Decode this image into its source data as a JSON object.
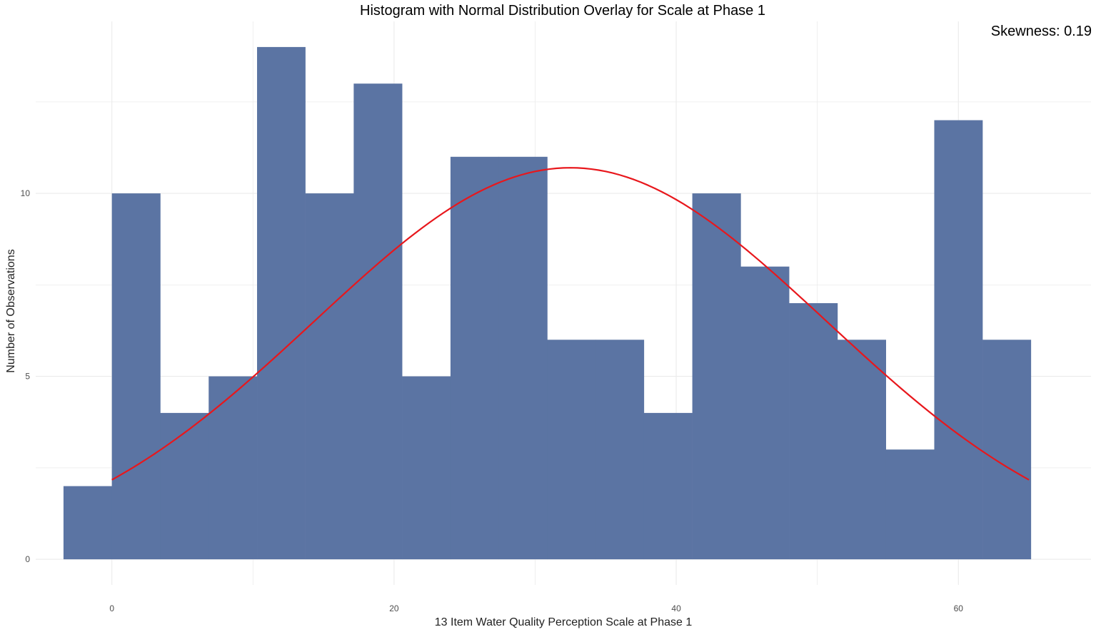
{
  "chart_data": {
    "type": "bar",
    "title": "Histogram with Normal Distribution Overlay for Scale at Phase 1",
    "xlabel": "13 Item Water Quality Perception Scale at Phase 1",
    "ylabel": "Number of Observations",
    "annotation": "Skewness: 0.19",
    "xlim": [
      -5.4,
      69.4
    ],
    "ylim": [
      -0.7,
      14.7
    ],
    "x_ticks": [
      0,
      20,
      40,
      60
    ],
    "y_ticks": [
      0,
      5,
      10
    ],
    "grid": true,
    "bins": [
      {
        "x0": -3.43,
        "x1": 0.0,
        "count": 2
      },
      {
        "x0": 0.0,
        "x1": 3.43,
        "count": 10
      },
      {
        "x0": 3.43,
        "x1": 6.86,
        "count": 4
      },
      {
        "x0": 6.86,
        "x1": 10.29,
        "count": 5
      },
      {
        "x0": 10.29,
        "x1": 13.71,
        "count": 14
      },
      {
        "x0": 13.71,
        "x1": 17.14,
        "count": 10
      },
      {
        "x0": 17.14,
        "x1": 20.57,
        "count": 13
      },
      {
        "x0": 20.57,
        "x1": 24.0,
        "count": 5
      },
      {
        "x0": 24.0,
        "x1": 27.43,
        "count": 11
      },
      {
        "x0": 27.43,
        "x1": 30.86,
        "count": 11
      },
      {
        "x0": 30.86,
        "x1": 34.29,
        "count": 6
      },
      {
        "x0": 34.29,
        "x1": 37.71,
        "count": 6
      },
      {
        "x0": 37.71,
        "x1": 41.14,
        "count": 4
      },
      {
        "x0": 41.14,
        "x1": 44.57,
        "count": 10
      },
      {
        "x0": 44.57,
        "x1": 48.0,
        "count": 8
      },
      {
        "x0": 48.0,
        "x1": 51.43,
        "count": 7
      },
      {
        "x0": 51.43,
        "x1": 54.86,
        "count": 6
      },
      {
        "x0": 54.86,
        "x1": 58.29,
        "count": 3
      },
      {
        "x0": 58.29,
        "x1": 61.71,
        "count": 12
      },
      {
        "x0": 61.71,
        "x1": 65.14,
        "count": 6
      }
    ],
    "normal_curve": {
      "mean": 32.5,
      "sd": 18.2,
      "peak": 10.7,
      "x_range": [
        0,
        65
      ]
    },
    "colors": {
      "bars": "#5b74a3",
      "curve": "#e8171c",
      "grid": "#ebebeb"
    }
  }
}
